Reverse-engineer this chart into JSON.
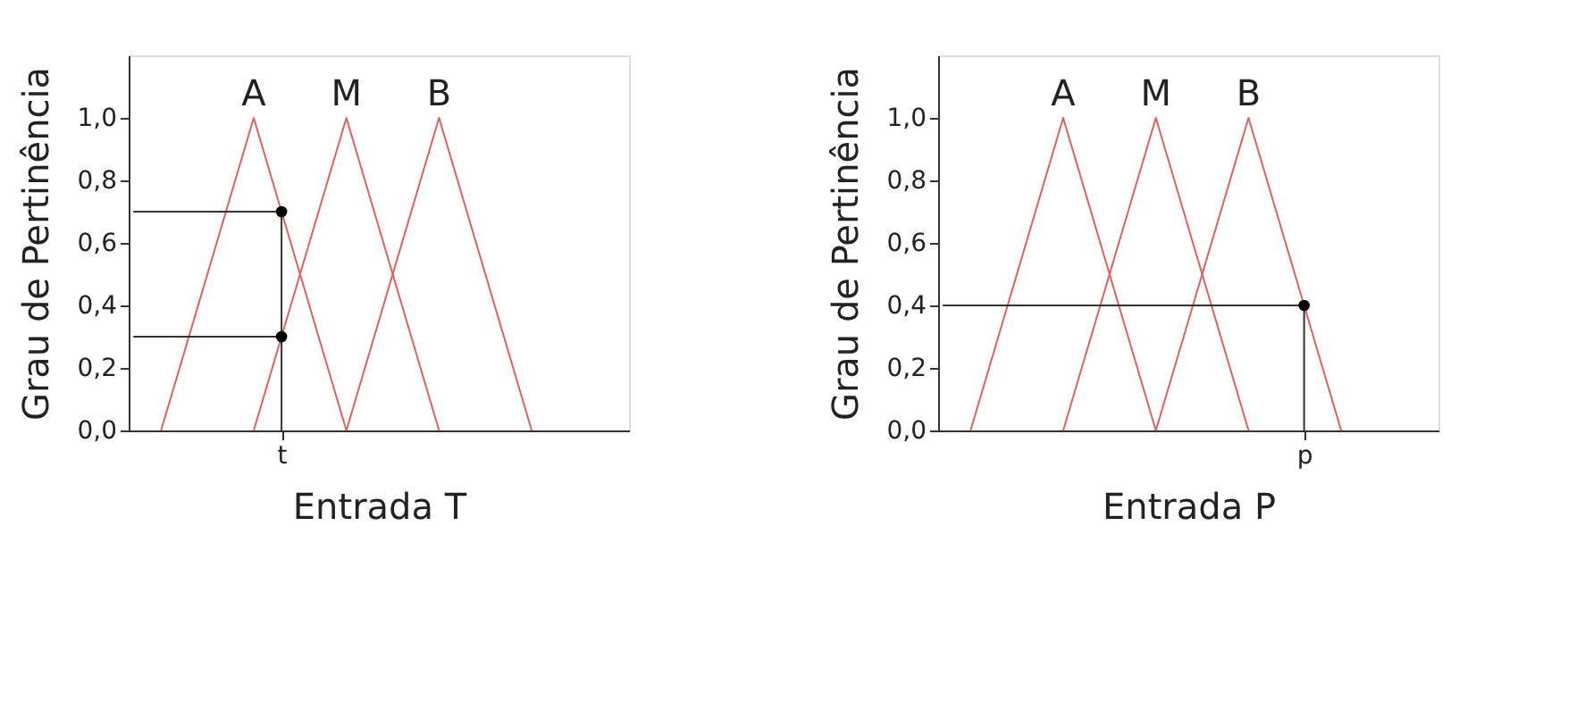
{
  "chart_data": [
    {
      "type": "line",
      "xlabel": "Entrada T",
      "ylabel": "Grau de Pertinência",
      "ylim": [
        0,
        1.2
      ],
      "yticks": [
        {
          "value": 0,
          "label": "0,0"
        },
        {
          "value": 0.2,
          "label": "0,2"
        },
        {
          "value": 0.4,
          "label": "0,4"
        },
        {
          "value": 0.6,
          "label": "0,6"
        },
        {
          "value": 0.8,
          "label": "0,8"
        },
        {
          "value": 1,
          "label": "1,0"
        }
      ],
      "grid": false,
      "line_style": "solid",
      "categories": [
        null,
        null,
        null,
        null,
        null,
        null,
        null,
        null,
        null,
        null,
        null,
        null,
        null,
        null,
        null,
        null,
        "t",
        null,
        null,
        null,
        null,
        null,
        null,
        null,
        null,
        null,
        null,
        null,
        null,
        null,
        null,
        null,
        null,
        null,
        null,
        null,
        null,
        null,
        null,
        null,
        null,
        null,
        null,
        null,
        null,
        null,
        null,
        null,
        null,
        null,
        null,
        null,
        null,
        null
      ],
      "series": [
        {
          "name": "A",
          "type": "line",
          "color": "#e06060",
          "values": [
            null,
            null,
            null,
            0,
            0.1,
            0.2,
            0.3,
            0.4,
            0.5,
            0.6,
            0.7,
            0.8,
            0.9,
            1,
            0.9,
            0.8,
            0.7,
            0.6,
            0.5,
            0.4,
            0.3,
            0.2,
            0.1,
            0,
            null,
            null,
            null,
            null,
            null,
            null,
            null,
            null,
            null,
            null,
            null,
            null,
            null,
            null,
            null,
            null,
            null,
            null,
            null,
            null,
            null,
            null,
            null,
            null,
            null,
            null,
            null,
            null,
            null,
            null
          ]
        },
        {
          "name": "M",
          "type": "line",
          "color": "#e06060",
          "values": [
            null,
            null,
            null,
            null,
            null,
            null,
            null,
            null,
            null,
            null,
            null,
            null,
            null,
            0,
            0.1,
            0.2,
            0.3,
            0.4,
            0.5,
            0.6,
            0.7,
            0.8,
            0.9,
            1,
            0.9,
            0.8,
            0.7,
            0.6,
            0.5,
            0.4,
            0.3,
            0.2,
            0.1,
            0,
            null,
            null,
            null,
            null,
            null,
            null,
            null,
            null,
            null,
            null,
            null,
            null,
            null,
            null,
            null,
            null,
            null,
            null,
            null,
            null
          ]
        },
        {
          "name": "B",
          "type": "line",
          "color": "#e06060",
          "values": [
            null,
            null,
            null,
            null,
            null,
            null,
            null,
            null,
            null,
            null,
            null,
            null,
            null,
            null,
            null,
            null,
            null,
            null,
            null,
            null,
            null,
            null,
            null,
            0,
            0.1,
            0.2,
            0.3,
            0.4,
            0.5,
            0.6,
            0.7,
            0.8,
            0.9,
            1,
            0.9,
            0.8,
            0.7,
            0.6,
            0.5,
            0.4,
            0.3,
            0.2,
            0.1,
            0,
            null,
            null,
            null,
            null,
            null,
            null,
            null,
            null,
            null,
            null
          ]
        },
        {
          "type": "line",
          "color": "#333333",
          "values": [
            0.7,
            0.7,
            0.7,
            0.7,
            0.7,
            0.7,
            0.7,
            0.7,
            0.7,
            0.7,
            0.7,
            0.7,
            0.7,
            0.7,
            0.7,
            0.7,
            0.7,
            null,
            null,
            null,
            null,
            null,
            null,
            null,
            null,
            null,
            null,
            null,
            null,
            null,
            null,
            null,
            null,
            null,
            null,
            null,
            null,
            null,
            null,
            null,
            null,
            null,
            null,
            null,
            null,
            null,
            null,
            null,
            null,
            null,
            null,
            null,
            null,
            null
          ]
        },
        {
          "type": "line",
          "color": "#333333",
          "values": [
            0.3,
            0.3,
            0.3,
            0.3,
            0.3,
            0.3,
            0.3,
            0.3,
            0.3,
            0.3,
            0.3,
            0.3,
            0.3,
            0.3,
            0.3,
            0.3,
            0.3,
            null,
            null,
            null,
            null,
            null,
            null,
            null,
            null,
            null,
            null,
            null,
            null,
            null,
            null,
            null,
            null,
            null,
            null,
            null,
            null,
            null,
            null,
            null,
            null,
            null,
            null,
            null,
            null,
            null,
            null,
            null,
            null,
            null,
            null,
            null,
            null,
            null
          ]
        },
        {
          "type": "scatter",
          "marker": "circle",
          "color": "#000000",
          "values": [
            null,
            null,
            null,
            null,
            null,
            null,
            null,
            null,
            null,
            null,
            null,
            null,
            null,
            null,
            null,
            null,
            0.7,
            null,
            null,
            null,
            null,
            null,
            null,
            null,
            null,
            null,
            null,
            null,
            null,
            null,
            null,
            null,
            null,
            null,
            null,
            null,
            null,
            null,
            null,
            null,
            null,
            null,
            null,
            null,
            null,
            null,
            null,
            null,
            null,
            null,
            null,
            null,
            null,
            null
          ],
          "errors": [
            null,
            null,
            null,
            null,
            null,
            null,
            null,
            null,
            null,
            null,
            null,
            null,
            null,
            null,
            null,
            null,
            [
              0,
              0.7
            ],
            null,
            null,
            null,
            null,
            null,
            null,
            null,
            null,
            null,
            null,
            null,
            null,
            null,
            null,
            null,
            null,
            null,
            null,
            null,
            null,
            null,
            null,
            null,
            null,
            null,
            null,
            null,
            null,
            null,
            null,
            null,
            null,
            null,
            null,
            null,
            null,
            null
          ]
        },
        {
          "type": "scatter",
          "marker": "circle",
          "color": "#000000",
          "values": [
            null,
            null,
            null,
            null,
            null,
            null,
            null,
            null,
            null,
            null,
            null,
            null,
            null,
            null,
            null,
            null,
            0.3,
            null,
            null,
            null,
            null,
            null,
            null,
            null,
            null,
            null,
            null,
            null,
            null,
            null,
            null,
            null,
            null,
            null,
            null,
            null,
            null,
            null,
            null,
            null,
            null,
            null,
            null,
            null,
            null,
            null,
            null,
            null,
            null,
            null,
            null,
            null,
            null,
            null
          ]
        }
      ]
    },
    {
      "type": "line",
      "xlabel": "Entrada P",
      "ylabel": "Grau de Pertinência",
      "ylim": [
        0,
        1.2
      ],
      "yticks": [
        {
          "value": 0,
          "label": "0,0"
        },
        {
          "value": 0.2,
          "label": "0,2"
        },
        {
          "value": 0.4,
          "label": "0,4"
        },
        {
          "value": 0.6,
          "label": "0,6"
        },
        {
          "value": 0.8,
          "label": "0,8"
        },
        {
          "value": 1,
          "label": "1,0"
        }
      ],
      "grid": false,
      "line_style": "solid",
      "categories": [
        null,
        null,
        null,
        null,
        null,
        null,
        null,
        null,
        null,
        null,
        null,
        null,
        null,
        null,
        null,
        null,
        null,
        null,
        null,
        null,
        null,
        null,
        null,
        null,
        null,
        null,
        null,
        null,
        null,
        null,
        null,
        null,
        null,
        null,
        null,
        null,
        null,
        null,
        null,
        "p",
        null,
        null,
        null,
        null,
        null,
        null,
        null,
        null,
        null,
        null,
        null,
        null,
        null,
        null
      ],
      "series": [
        {
          "name": "A",
          "type": "line",
          "color": "#e06060",
          "values": [
            null,
            null,
            null,
            0,
            0.1,
            0.2,
            0.3,
            0.4,
            0.5,
            0.6,
            0.7,
            0.8,
            0.9,
            1,
            0.9,
            0.8,
            0.7,
            0.6,
            0.5,
            0.4,
            0.3,
            0.2,
            0.1,
            0,
            null,
            null,
            null,
            null,
            null,
            null,
            null,
            null,
            null,
            null,
            null,
            null,
            null,
            null,
            null,
            null,
            null,
            null,
            null,
            null,
            null,
            null,
            null,
            null,
            null,
            null,
            null,
            null,
            null,
            null
          ]
        },
        {
          "name": "M",
          "type": "line",
          "color": "#e06060",
          "values": [
            null,
            null,
            null,
            null,
            null,
            null,
            null,
            null,
            null,
            null,
            null,
            null,
            null,
            0,
            0.1,
            0.2,
            0.3,
            0.4,
            0.5,
            0.6,
            0.7,
            0.8,
            0.9,
            1,
            0.9,
            0.8,
            0.7,
            0.6,
            0.5,
            0.4,
            0.3,
            0.2,
            0.1,
            0,
            null,
            null,
            null,
            null,
            null,
            null,
            null,
            null,
            null,
            null,
            null,
            null,
            null,
            null,
            null,
            null,
            null,
            null,
            null,
            null
          ]
        },
        {
          "name": "B",
          "type": "line",
          "color": "#e06060",
          "values": [
            null,
            null,
            null,
            null,
            null,
            null,
            null,
            null,
            null,
            null,
            null,
            null,
            null,
            null,
            null,
            null,
            null,
            null,
            null,
            null,
            null,
            null,
            null,
            0,
            0.1,
            0.2,
            0.3,
            0.4,
            0.5,
            0.6,
            0.7,
            0.8,
            0.9,
            1,
            0.9,
            0.8,
            0.7,
            0.6,
            0.5,
            0.4,
            0.3,
            0.2,
            0.1,
            0,
            null,
            null,
            null,
            null,
            null,
            null,
            null,
            null,
            null,
            null
          ]
        },
        {
          "type": "line",
          "color": "#333333",
          "values": [
            0.4,
            0.4,
            0.4,
            0.4,
            0.4,
            0.4,
            0.4,
            0.4,
            0.4,
            0.4,
            0.4,
            0.4,
            0.4,
            0.4,
            0.4,
            0.4,
            0.4,
            0.4,
            0.4,
            0.4,
            0.4,
            0.4,
            0.4,
            0.4,
            0.4,
            0.4,
            0.4,
            0.4,
            0.4,
            0.4,
            0.4,
            0.4,
            0.4,
            0.4,
            0.4,
            0.4,
            0.4,
            0.4,
            0.4,
            0.4,
            null,
            null,
            null,
            null,
            null,
            null,
            null,
            null,
            null,
            null,
            null,
            null,
            null,
            null
          ]
        },
        {
          "type": "scatter",
          "marker": "circle",
          "color": "#000000",
          "values": [
            null,
            null,
            null,
            null,
            null,
            null,
            null,
            null,
            null,
            null,
            null,
            null,
            null,
            null,
            null,
            null,
            null,
            null,
            null,
            null,
            null,
            null,
            null,
            null,
            null,
            null,
            null,
            null,
            null,
            null,
            null,
            null,
            null,
            null,
            null,
            null,
            null,
            null,
            null,
            0.4,
            null,
            null,
            null,
            null,
            null,
            null,
            null,
            null,
            null,
            null,
            null,
            null,
            null,
            null
          ],
          "errors": [
            null,
            null,
            null,
            null,
            null,
            null,
            null,
            null,
            null,
            null,
            null,
            null,
            null,
            null,
            null,
            null,
            null,
            null,
            null,
            null,
            null,
            null,
            null,
            null,
            null,
            null,
            null,
            null,
            null,
            null,
            null,
            null,
            null,
            null,
            null,
            null,
            null,
            null,
            null,
            [
              0,
              0.4
            ],
            null,
            null,
            null,
            null,
            null,
            null,
            null,
            null,
            null,
            null,
            null,
            null,
            null,
            null
          ]
        }
      ]
    }
  ]
}
